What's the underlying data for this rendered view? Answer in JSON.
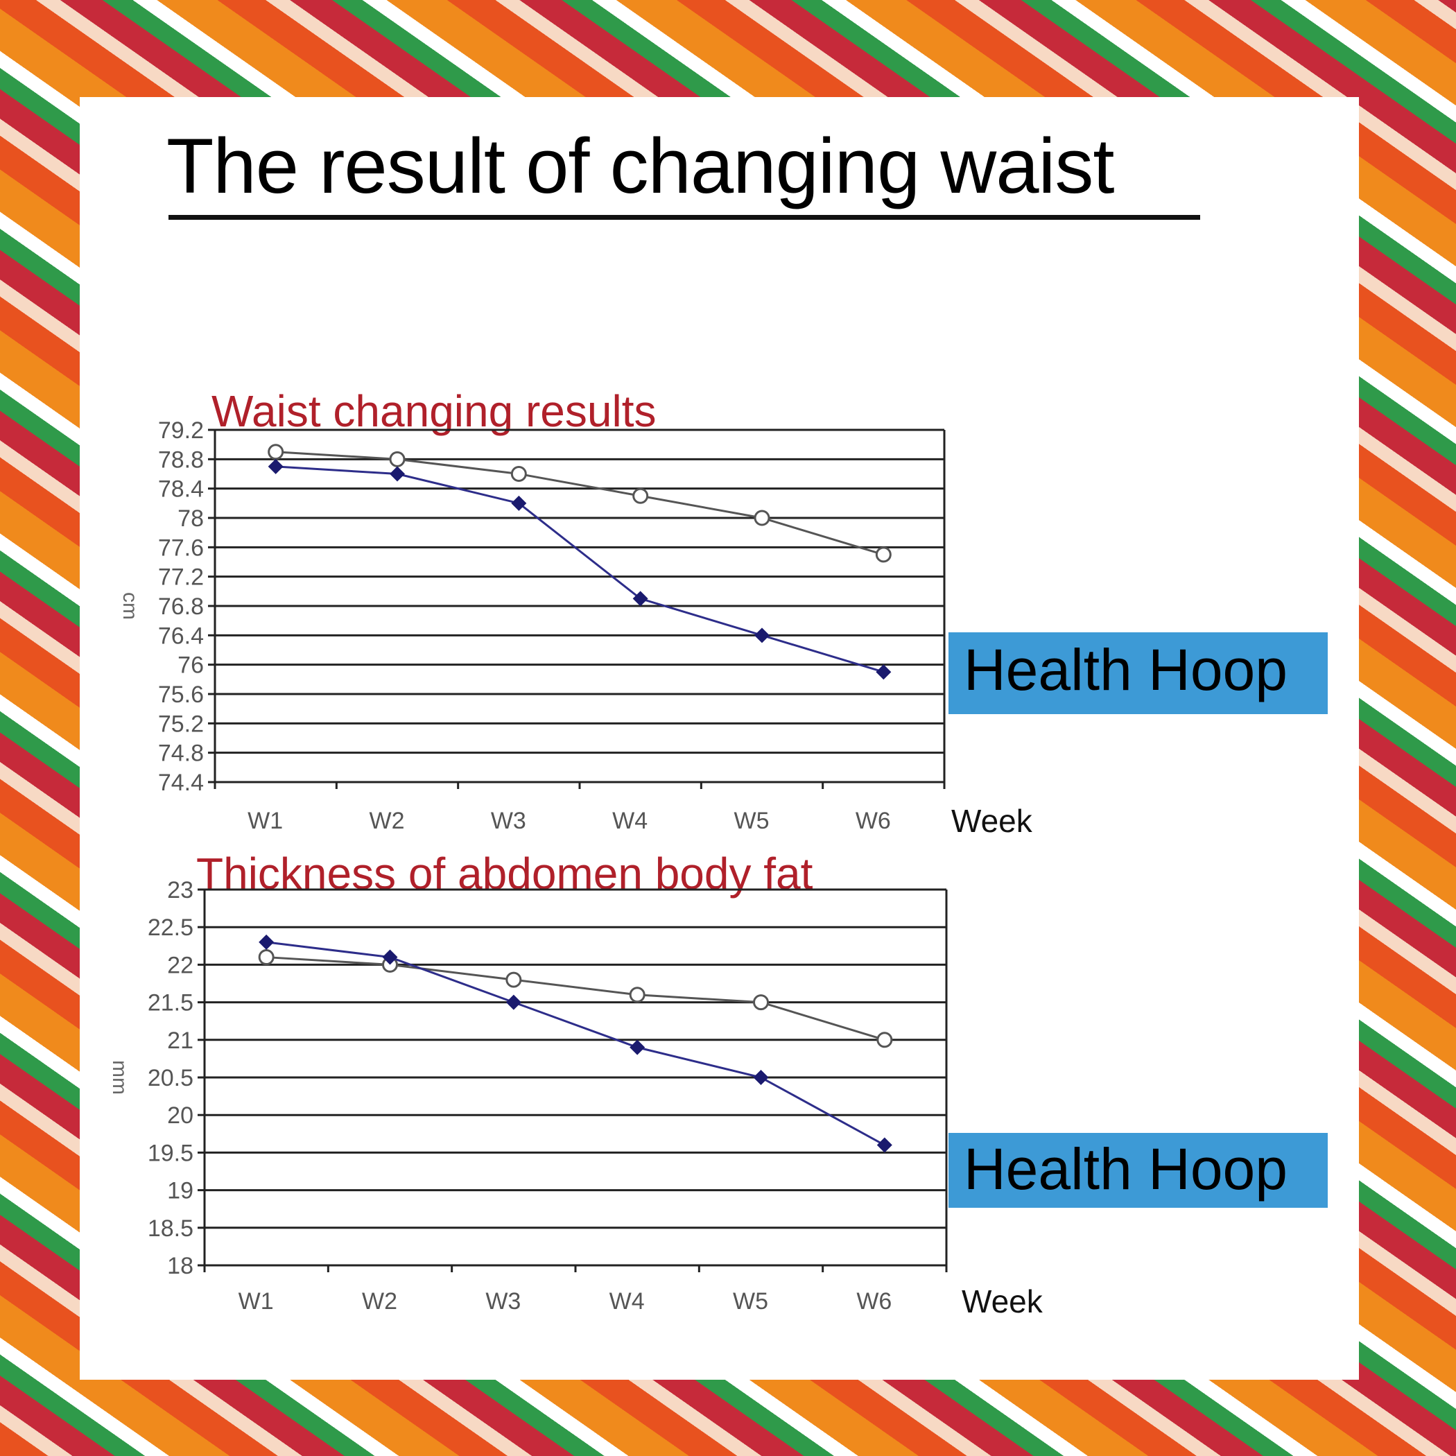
{
  "page": {
    "title": "The result of changing waist"
  },
  "charts_meta": {
    "x_axis_word": "Week",
    "legend_label": "Health Hoop"
  },
  "chart_data": [
    {
      "type": "line",
      "title": "Waist changing results",
      "xlabel": "Week",
      "ylabel": "cm",
      "categories": [
        "W1",
        "W2",
        "W3",
        "W4",
        "W5",
        "W6"
      ],
      "ylim": [
        74.4,
        79.2
      ],
      "yticks": [
        "79.2",
        "78.8",
        "78.4",
        "78",
        "77.6",
        "77.2",
        "76.8",
        "76.4",
        "76",
        "75.6",
        "75.2",
        "74.8",
        "74.4"
      ],
      "grid": true,
      "series": [
        {
          "values": [
            78.9,
            78.8,
            78.6,
            78.3,
            78.0,
            77.5
          ],
          "color": "#555555",
          "marker": "open-circle"
        },
        {
          "name": "Health Hoop",
          "values": [
            78.7,
            78.6,
            78.2,
            76.9,
            76.4,
            75.9
          ],
          "color": "#2d2d8a",
          "marker": "diamond"
        }
      ]
    },
    {
      "type": "line",
      "title": "Thickness of abdomen body fat",
      "xlabel": "Week",
      "ylabel": "mm",
      "categories": [
        "W1",
        "W2",
        "W3",
        "W4",
        "W5",
        "W6"
      ],
      "ylim": [
        18,
        23
      ],
      "yticks": [
        "23",
        "22.5",
        "22",
        "21.5",
        "21",
        "20.5",
        "20",
        "19.5",
        "19",
        "18.5",
        "18"
      ],
      "grid": true,
      "series": [
        {
          "values": [
            22.1,
            22.0,
            21.8,
            21.6,
            21.5,
            21.0
          ],
          "color": "#555555",
          "marker": "open-circle"
        },
        {
          "name": "Health Hoop",
          "values": [
            22.3,
            22.1,
            21.5,
            20.9,
            20.5,
            19.6
          ],
          "color": "#2d2d8a",
          "marker": "diamond"
        }
      ]
    }
  ],
  "colors": {
    "title_red": "#b0202a",
    "legend_bg": "#3d9ad6",
    "panel": "#ffffff"
  }
}
